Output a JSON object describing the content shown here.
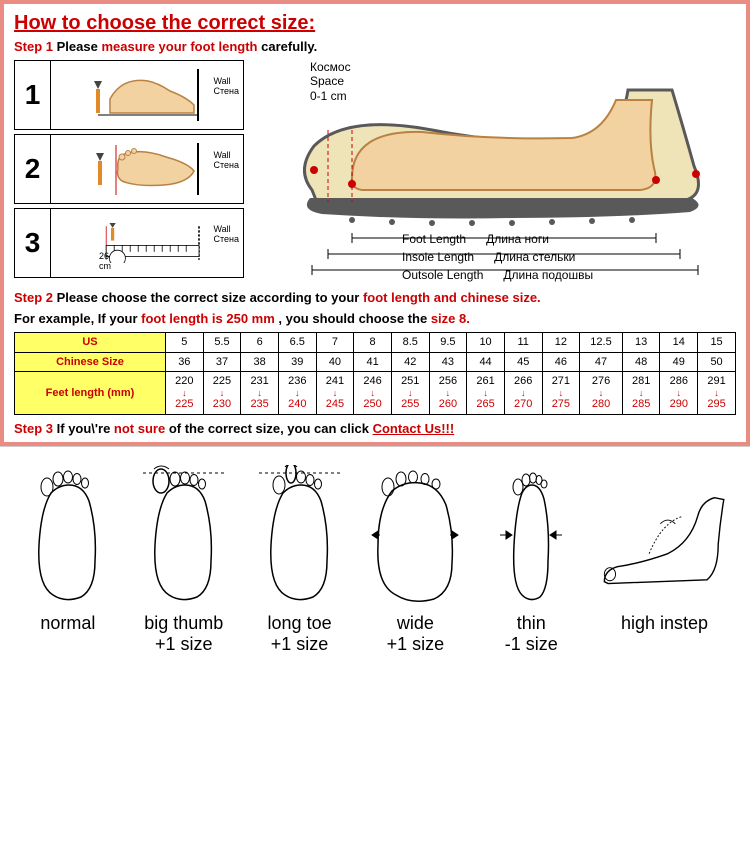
{
  "title": "How to choose the correct size:",
  "step1": {
    "label": "Step 1",
    "t1": "Please ",
    "red": "measure your foot length",
    "t2": " carefully."
  },
  "measure_steps": {
    "s1": "1",
    "s2": "2",
    "s3": "3",
    "wall": "Wall",
    "wall_ru": "Стена",
    "ruler_val": "26",
    "ruler_unit": "cm"
  },
  "shoe": {
    "space_ru": "Космос",
    "space_en": "Space",
    "space_val": "0-1 cm",
    "foot_en": "Foot Length",
    "foot_ru": "Длина ноги",
    "insole_en": "Insole Length",
    "insole_ru": "Длина стельки",
    "outsole_en": "Outsole Length",
    "outsole_ru": "Длина подошвы"
  },
  "step2": {
    "label": "Step 2",
    "t1": "Please choose the correct size according to your ",
    "red": "foot length and chinese size.",
    "eg1": "For example, If your ",
    "eg_red1": "foot length is 250 mm",
    "eg2": " , you should choose the ",
    "eg_red2": "size 8."
  },
  "table": {
    "headers": {
      "us": "US",
      "cn": "Chinese Size",
      "feet": "Feet length (mm)"
    },
    "us": [
      "5",
      "5.5",
      "6",
      "6.5",
      "7",
      "8",
      "8.5",
      "9.5",
      "10",
      "11",
      "12",
      "12.5",
      "13",
      "14",
      "15"
    ],
    "cn": [
      "36",
      "37",
      "38",
      "39",
      "40",
      "41",
      "42",
      "43",
      "44",
      "45",
      "46",
      "47",
      "48",
      "49",
      "50"
    ],
    "from": [
      "220",
      "225",
      "231",
      "236",
      "241",
      "246",
      "251",
      "256",
      "261",
      "266",
      "271",
      "276",
      "281",
      "286",
      "291"
    ],
    "to": [
      "225",
      "230",
      "235",
      "240",
      "245",
      "250",
      "255",
      "260",
      "265",
      "270",
      "275",
      "280",
      "285",
      "290",
      "295"
    ]
  },
  "step3": {
    "label": "Step 3",
    "t1": "If you\\'re ",
    "red": "not sure",
    "t2": " of the correct size, you can click ",
    "link": "Contact Us!!!"
  },
  "foot_types": {
    "normal": {
      "label": "normal",
      "adj": ""
    },
    "big_thumb": {
      "label": "big thumb",
      "adj": "+1 size"
    },
    "long_toe": {
      "label": "long toe",
      "adj": "+1 size"
    },
    "wide": {
      "label": "wide",
      "adj": "+1 size"
    },
    "thin": {
      "label": "thin",
      "adj": "-1 size"
    },
    "high": {
      "label": "high instep",
      "adj": ""
    }
  },
  "colors": {
    "border": "#e88c84",
    "red": "#cc0000",
    "yellow": "#ffff66",
    "foot_fill": "#f3d2a1",
    "foot_stroke": "#b98142",
    "sole": "#595959",
    "pencil": "#e08a2a"
  }
}
